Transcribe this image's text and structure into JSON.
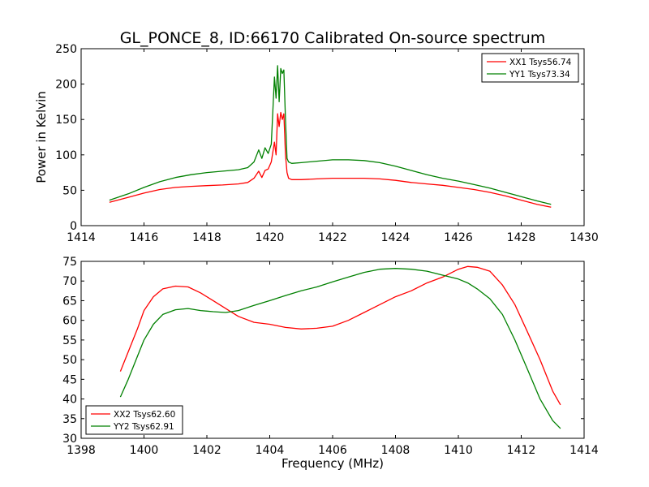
{
  "title": "GL_PONCE_8, ID:66170 Calibrated On-source spectrum",
  "chart_data": [
    {
      "type": "line",
      "ylabel": "Power in Kelvin",
      "xlabel": "",
      "xlim": [
        1414,
        1430
      ],
      "ylim": [
        0,
        250
      ],
      "xticks": [
        1414,
        1416,
        1418,
        1420,
        1422,
        1424,
        1426,
        1428,
        1430
      ],
      "yticks": [
        0,
        50,
        100,
        150,
        200,
        250
      ],
      "legend_position": "top-right",
      "series": [
        {
          "name": "XX1 Tsys56.74",
          "color": "#ff0000",
          "x": [
            1414.9,
            1415.5,
            1416.0,
            1416.5,
            1417.0,
            1417.5,
            1418.0,
            1418.5,
            1419.0,
            1419.3,
            1419.5,
            1419.65,
            1419.75,
            1419.85,
            1419.95,
            1420.05,
            1420.15,
            1420.2,
            1420.25,
            1420.3,
            1420.35,
            1420.4,
            1420.45,
            1420.5,
            1420.55,
            1420.6,
            1420.7,
            1421.0,
            1421.5,
            1422.0,
            1422.5,
            1423.0,
            1423.5,
            1424.0,
            1424.5,
            1425.0,
            1425.5,
            1426.0,
            1426.5,
            1427.0,
            1427.5,
            1428.0,
            1428.5,
            1428.95
          ],
          "y": [
            33,
            40,
            46,
            51,
            54,
            55.5,
            56.5,
            57.5,
            59,
            61,
            67,
            77,
            68,
            78,
            80,
            90,
            118,
            100,
            158,
            140,
            160,
            150,
            158,
            100,
            75,
            67,
            65,
            65,
            66,
            67,
            67,
            67,
            66,
            64,
            61,
            59,
            57,
            54,
            51,
            47,
            42,
            36,
            30,
            26
          ]
        },
        {
          "name": "YY1 Tsys73.34",
          "color": "#008000",
          "x": [
            1414.9,
            1415.5,
            1416.0,
            1416.5,
            1417.0,
            1417.5,
            1418.0,
            1418.5,
            1419.0,
            1419.3,
            1419.5,
            1419.65,
            1419.75,
            1419.85,
            1419.95,
            1420.05,
            1420.15,
            1420.2,
            1420.25,
            1420.3,
            1420.35,
            1420.4,
            1420.45,
            1420.5,
            1420.55,
            1420.6,
            1420.7,
            1421.0,
            1421.5,
            1422.0,
            1422.5,
            1423.0,
            1423.5,
            1424.0,
            1424.5,
            1425.0,
            1425.5,
            1426.0,
            1426.5,
            1427.0,
            1427.5,
            1428.0,
            1428.5,
            1428.95
          ],
          "y": [
            36,
            45,
            54,
            62,
            68,
            72,
            75,
            77,
            79,
            82,
            90,
            107,
            95,
            110,
            102,
            115,
            210,
            180,
            226,
            175,
            222,
            215,
            220,
            150,
            95,
            90,
            88,
            89,
            91,
            93,
            93,
            92,
            89,
            84,
            78,
            72,
            67,
            63,
            58,
            53,
            47,
            41,
            35,
            30
          ]
        }
      ]
    },
    {
      "type": "line",
      "xlabel": "Frequency (MHz)",
      "ylabel": "",
      "xlim": [
        1398,
        1414
      ],
      "ylim": [
        30,
        75
      ],
      "xticks": [
        1398,
        1400,
        1402,
        1404,
        1406,
        1408,
        1410,
        1412,
        1414
      ],
      "yticks": [
        30,
        35,
        40,
        45,
        50,
        55,
        60,
        65,
        70,
        75
      ],
      "legend_position": "bottom-left",
      "series": [
        {
          "name": "XX2 Tsys62.60",
          "color": "#ff0000",
          "x": [
            1399.25,
            1399.5,
            1399.8,
            1400.0,
            1400.3,
            1400.6,
            1401.0,
            1401.4,
            1401.8,
            1402.2,
            1402.6,
            1403.0,
            1403.5,
            1404.0,
            1404.5,
            1405.0,
            1405.5,
            1406.0,
            1406.5,
            1407.0,
            1407.5,
            1408.0,
            1408.5,
            1409.0,
            1409.5,
            1410.0,
            1410.3,
            1410.6,
            1411.0,
            1411.4,
            1411.8,
            1412.2,
            1412.6,
            1413.0,
            1413.25
          ],
          "y": [
            47,
            52,
            58,
            62.5,
            66,
            68,
            68.7,
            68.5,
            67,
            65,
            63,
            61,
            59.5,
            59,
            58.2,
            57.8,
            58,
            58.5,
            60,
            62,
            64,
            66,
            67.5,
            69.5,
            71,
            73,
            73.7,
            73.5,
            72.5,
            69,
            64,
            57,
            50,
            42,
            38.5
          ]
        },
        {
          "name": "YY2 Tsys62.91",
          "color": "#008000",
          "x": [
            1399.25,
            1399.5,
            1399.8,
            1400.0,
            1400.3,
            1400.6,
            1401.0,
            1401.4,
            1401.8,
            1402.2,
            1402.6,
            1403.0,
            1403.5,
            1404.0,
            1404.5,
            1405.0,
            1405.5,
            1406.0,
            1406.5,
            1407.0,
            1407.5,
            1408.0,
            1408.5,
            1409.0,
            1409.5,
            1410.0,
            1410.3,
            1410.6,
            1411.0,
            1411.4,
            1411.8,
            1412.2,
            1412.6,
            1413.0,
            1413.25
          ],
          "y": [
            40.5,
            45,
            51,
            55,
            59,
            61.5,
            62.7,
            63,
            62.5,
            62.2,
            62,
            62.5,
            63.8,
            65,
            66.3,
            67.5,
            68.5,
            69.8,
            71,
            72.2,
            73,
            73.2,
            73,
            72.5,
            71.5,
            70.5,
            69.5,
            68,
            65.5,
            61.5,
            55,
            47.5,
            40,
            34.5,
            32.5
          ]
        }
      ]
    }
  ]
}
